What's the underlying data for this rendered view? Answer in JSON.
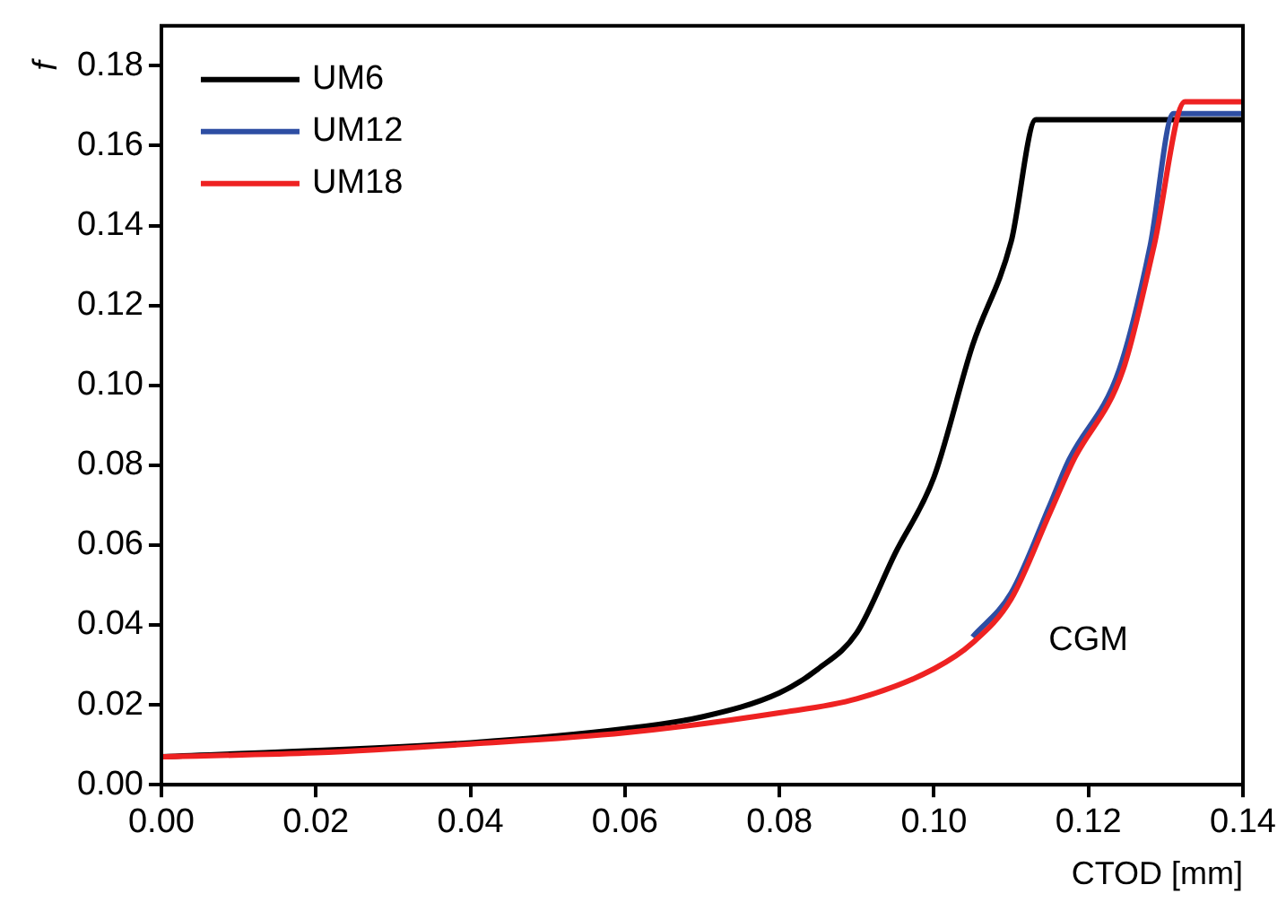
{
  "chart_data": {
    "type": "line",
    "xlabel": "CTOD [mm]",
    "ylabel": "f",
    "xlim": [
      0,
      0.14
    ],
    "xticks": [
      {
        "value": 0,
        "label": "0.00"
      },
      0.02,
      0.04,
      0.06,
      0.08,
      {
        "value": 0.1,
        "label": "0.10"
      },
      0.12,
      0.14
    ],
    "ylim": [
      0,
      0.19
    ],
    "yticks": [
      {
        "value": 0,
        "label": "0.00"
      },
      0.02,
      0.04,
      0.06,
      0.08,
      {
        "value": 0.1,
        "label": "0.10"
      },
      0.12,
      0.14,
      0.16,
      0.18
    ],
    "grid": false,
    "legend": "top left",
    "marker": "none",
    "line_style": "solid",
    "annotations": [
      "CGM"
    ],
    "series": [
      {
        "name": "UM6",
        "color": "#000000",
        "x": [
          0,
          0.04,
          0.06,
          0.07,
          0.08,
          0.085,
          0.09,
          0.095,
          0.1,
          0.105,
          0.11,
          0.1132,
          0.14
        ],
        "values": [
          0.007,
          0.0105,
          0.014,
          0.017,
          0.023,
          0.029,
          0.038,
          0.058,
          0.077,
          0.11,
          0.136,
          0.1665,
          0.1665
        ]
      },
      {
        "name": "UM12",
        "color": "#2e4ea3",
        "x": [
          0.105,
          0.11,
          0.115,
          0.1174,
          0.124,
          0.128,
          0.131,
          0.14
        ],
        "values": [
          0.037,
          0.048,
          0.07,
          0.081,
          0.104,
          0.135,
          0.168,
          0.168
        ]
      },
      {
        "name": "UM18",
        "color": "#ee2222",
        "x": [
          0,
          0.02,
          0.04,
          0.06,
          0.08,
          0.09,
          0.1,
          0.105,
          0.11,
          0.115,
          0.118,
          0.1245,
          0.1285,
          0.1325,
          0.14
        ],
        "values": [
          0.007,
          0.008,
          0.0102,
          0.013,
          0.018,
          0.0215,
          0.029,
          0.0355,
          0.0465,
          0.068,
          0.081,
          0.104,
          0.135,
          0.171,
          0.171
        ]
      }
    ]
  }
}
